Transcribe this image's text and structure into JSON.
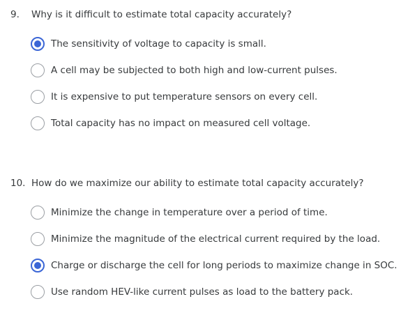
{
  "questions": [
    {
      "number": "9.",
      "text": "Why is it difficult to estimate total capacity accurately?",
      "options": [
        {
          "label": "The sensitivity of voltage to capacity is small.",
          "selected": true
        },
        {
          "label": "A cell may be subjected to both high and low-current pulses.",
          "selected": false
        },
        {
          "label": "It is expensive to put temperature sensors on every cell.",
          "selected": false
        },
        {
          "label": "Total capacity has no impact on measured cell voltage.",
          "selected": false
        }
      ]
    },
    {
      "number": "10.",
      "text": "How do we maximize our ability to estimate total capacity accurately?",
      "options": [
        {
          "label": "Minimize the change in temperature over a period of time.",
          "selected": false
        },
        {
          "label": "Minimize the magnitude of the electrical current required by the load.",
          "selected": false
        },
        {
          "label": "Charge or discharge the cell for long periods to maximize change in SOC.",
          "selected": true
        },
        {
          "label": "Use random HEV-like current pulses as load to the battery pack.",
          "selected": false
        }
      ]
    }
  ],
  "colors": {
    "accent": "#3b66d6",
    "text": "#373a3c",
    "radio_border": "#9a9ea3"
  }
}
